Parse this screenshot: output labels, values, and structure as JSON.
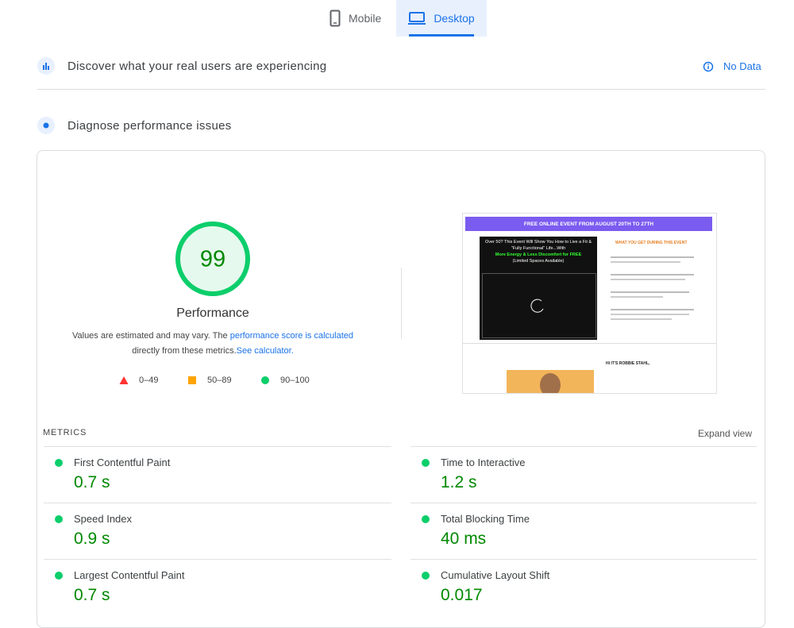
{
  "tabs": [
    "Mobile",
    "Desktop"
  ],
  "field_data": {
    "title": "Discover what your real users are experiencing",
    "status": "No Data"
  },
  "diagnose": {
    "title": "Diagnose performance issues"
  },
  "performance": {
    "score": 99,
    "label": "Performance",
    "note_prefix": "Values are estimated and may vary. The",
    "note_link": "performance score is calculated",
    "note_middle": "directly from these metrics.",
    "note_link2": "See calculator.",
    "legend": [
      "0–49",
      "50–89",
      "90–100"
    ]
  },
  "screenshot": {
    "banner": "FREE ONLINE EVENT FROM AUGUST 20TH TO 27TH",
    "headline": "Over 50? This Event Will Show You How to Live a Fit & \"Fully Functional\" Life...With",
    "highlight": "More Energy & Less Discomfort for FREE",
    "subline": "(Limited Spaces Available)",
    "side_heading": "WHAT YOU GET DURING THIS EVENT",
    "greeting": "HI IT'S ROBBIE STAHL,"
  },
  "metrics": {
    "heading": "METRICS",
    "expand": "Expand view",
    "items": [
      {
        "name": "First Contentful Paint",
        "value": "0.7 s"
      },
      {
        "name": "Time to Interactive",
        "value": "1.2 s"
      },
      {
        "name": "Speed Index",
        "value": "0.9 s"
      },
      {
        "name": "Total Blocking Time",
        "value": "40 ms"
      },
      {
        "name": "Largest Contentful Paint",
        "value": "0.7 s"
      },
      {
        "name": "Cumulative Layout Shift",
        "value": "0.017"
      }
    ]
  }
}
